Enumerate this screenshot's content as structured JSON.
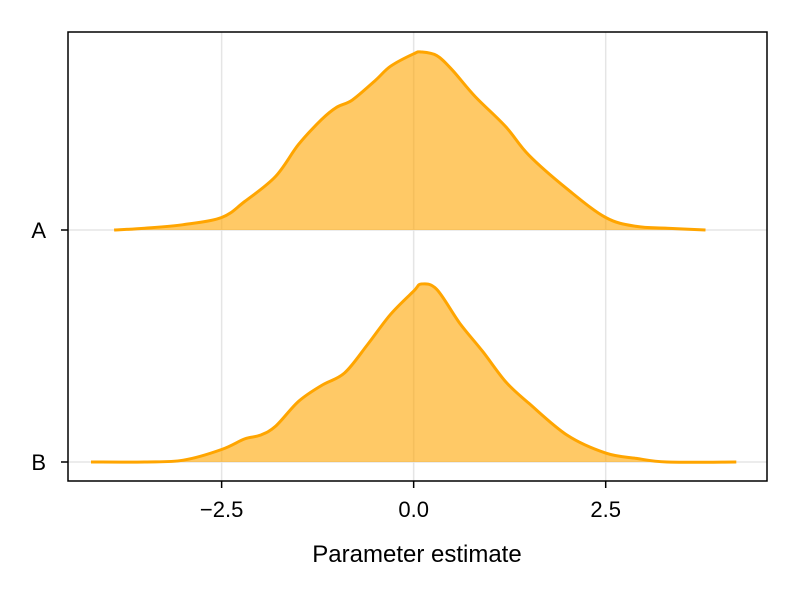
{
  "chart_data": {
    "type": "area",
    "subtype": "ridgeline-density",
    "title": "",
    "xlabel": "Parameter estimate",
    "ylabel": "",
    "xlim": [
      -4.5,
      4.6
    ],
    "x_ticks": [
      -2.5,
      0.0,
      2.5
    ],
    "x_tick_labels": [
      "−2.5",
      "0.0",
      "2.5"
    ],
    "categories": [
      "A",
      "B"
    ],
    "grid": true,
    "legend": "none",
    "colors": {
      "fill": "#ffa500",
      "line": "#ffa500"
    },
    "series": [
      {
        "category": "A",
        "x": [
          -3.9,
          -3.5,
          -3.0,
          -2.5,
          -2.2,
          -1.8,
          -1.5,
          -1.2,
          -1.0,
          -0.8,
          -0.5,
          -0.3,
          0.0,
          0.1,
          0.3,
          0.5,
          0.8,
          1.2,
          1.5,
          2.0,
          2.5,
          2.9,
          3.3,
          3.8
        ],
        "density": [
          0.0,
          0.01,
          0.03,
          0.07,
          0.16,
          0.3,
          0.48,
          0.62,
          0.69,
          0.73,
          0.84,
          0.92,
          0.99,
          1.0,
          0.98,
          0.9,
          0.75,
          0.58,
          0.42,
          0.23,
          0.07,
          0.02,
          0.01,
          0.0
        ]
      },
      {
        "category": "B",
        "x": [
          -4.2,
          -3.5,
          -3.0,
          -2.5,
          -2.2,
          -2.0,
          -1.8,
          -1.5,
          -1.2,
          -0.9,
          -0.6,
          -0.3,
          0.0,
          0.1,
          0.3,
          0.6,
          0.9,
          1.2,
          1.5,
          2.0,
          2.5,
          2.9,
          3.3,
          4.2
        ],
        "density": [
          0.0,
          0.0,
          0.01,
          0.07,
          0.13,
          0.15,
          0.2,
          0.34,
          0.43,
          0.5,
          0.66,
          0.83,
          0.96,
          1.0,
          0.97,
          0.78,
          0.62,
          0.45,
          0.33,
          0.15,
          0.05,
          0.02,
          0.0,
          0.0
        ]
      }
    ]
  }
}
